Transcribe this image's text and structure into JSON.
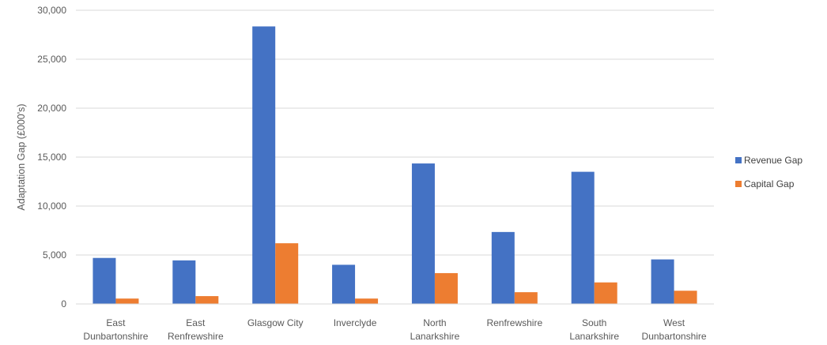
{
  "chart_data": {
    "type": "bar",
    "title": "",
    "xlabel": "",
    "ylabel": "Adaptation Gap (£000's)",
    "categories": [
      [
        "East",
        "Dunbartonshire"
      ],
      [
        "East",
        "Renfrewshire"
      ],
      [
        "Glasgow City"
      ],
      [
        "Inverclyde"
      ],
      [
        "North",
        "Lanarkshire"
      ],
      [
        "Renfrewshire"
      ],
      [
        "South",
        "Lanarkshire"
      ],
      [
        "West",
        "Dunbartonshire"
      ]
    ],
    "series": [
      {
        "name": "Revenue Gap",
        "color": "#4472C4",
        "values": [
          4700,
          4450,
          28350,
          4000,
          14350,
          7350,
          13500,
          4550
        ]
      },
      {
        "name": "Capital Gap",
        "color": "#ED7D31",
        "values": [
          550,
          800,
          6200,
          550,
          3150,
          1200,
          2200,
          1350
        ]
      }
    ],
    "ylim": [
      0,
      30000
    ],
    "yticks": [
      "0",
      "5,000",
      "10,000",
      "15,000",
      "20,000",
      "25,000",
      "30,000"
    ],
    "ytick_values": [
      0,
      5000,
      10000,
      15000,
      20000,
      25000,
      30000
    ],
    "grid": true,
    "legend_position": "right"
  }
}
